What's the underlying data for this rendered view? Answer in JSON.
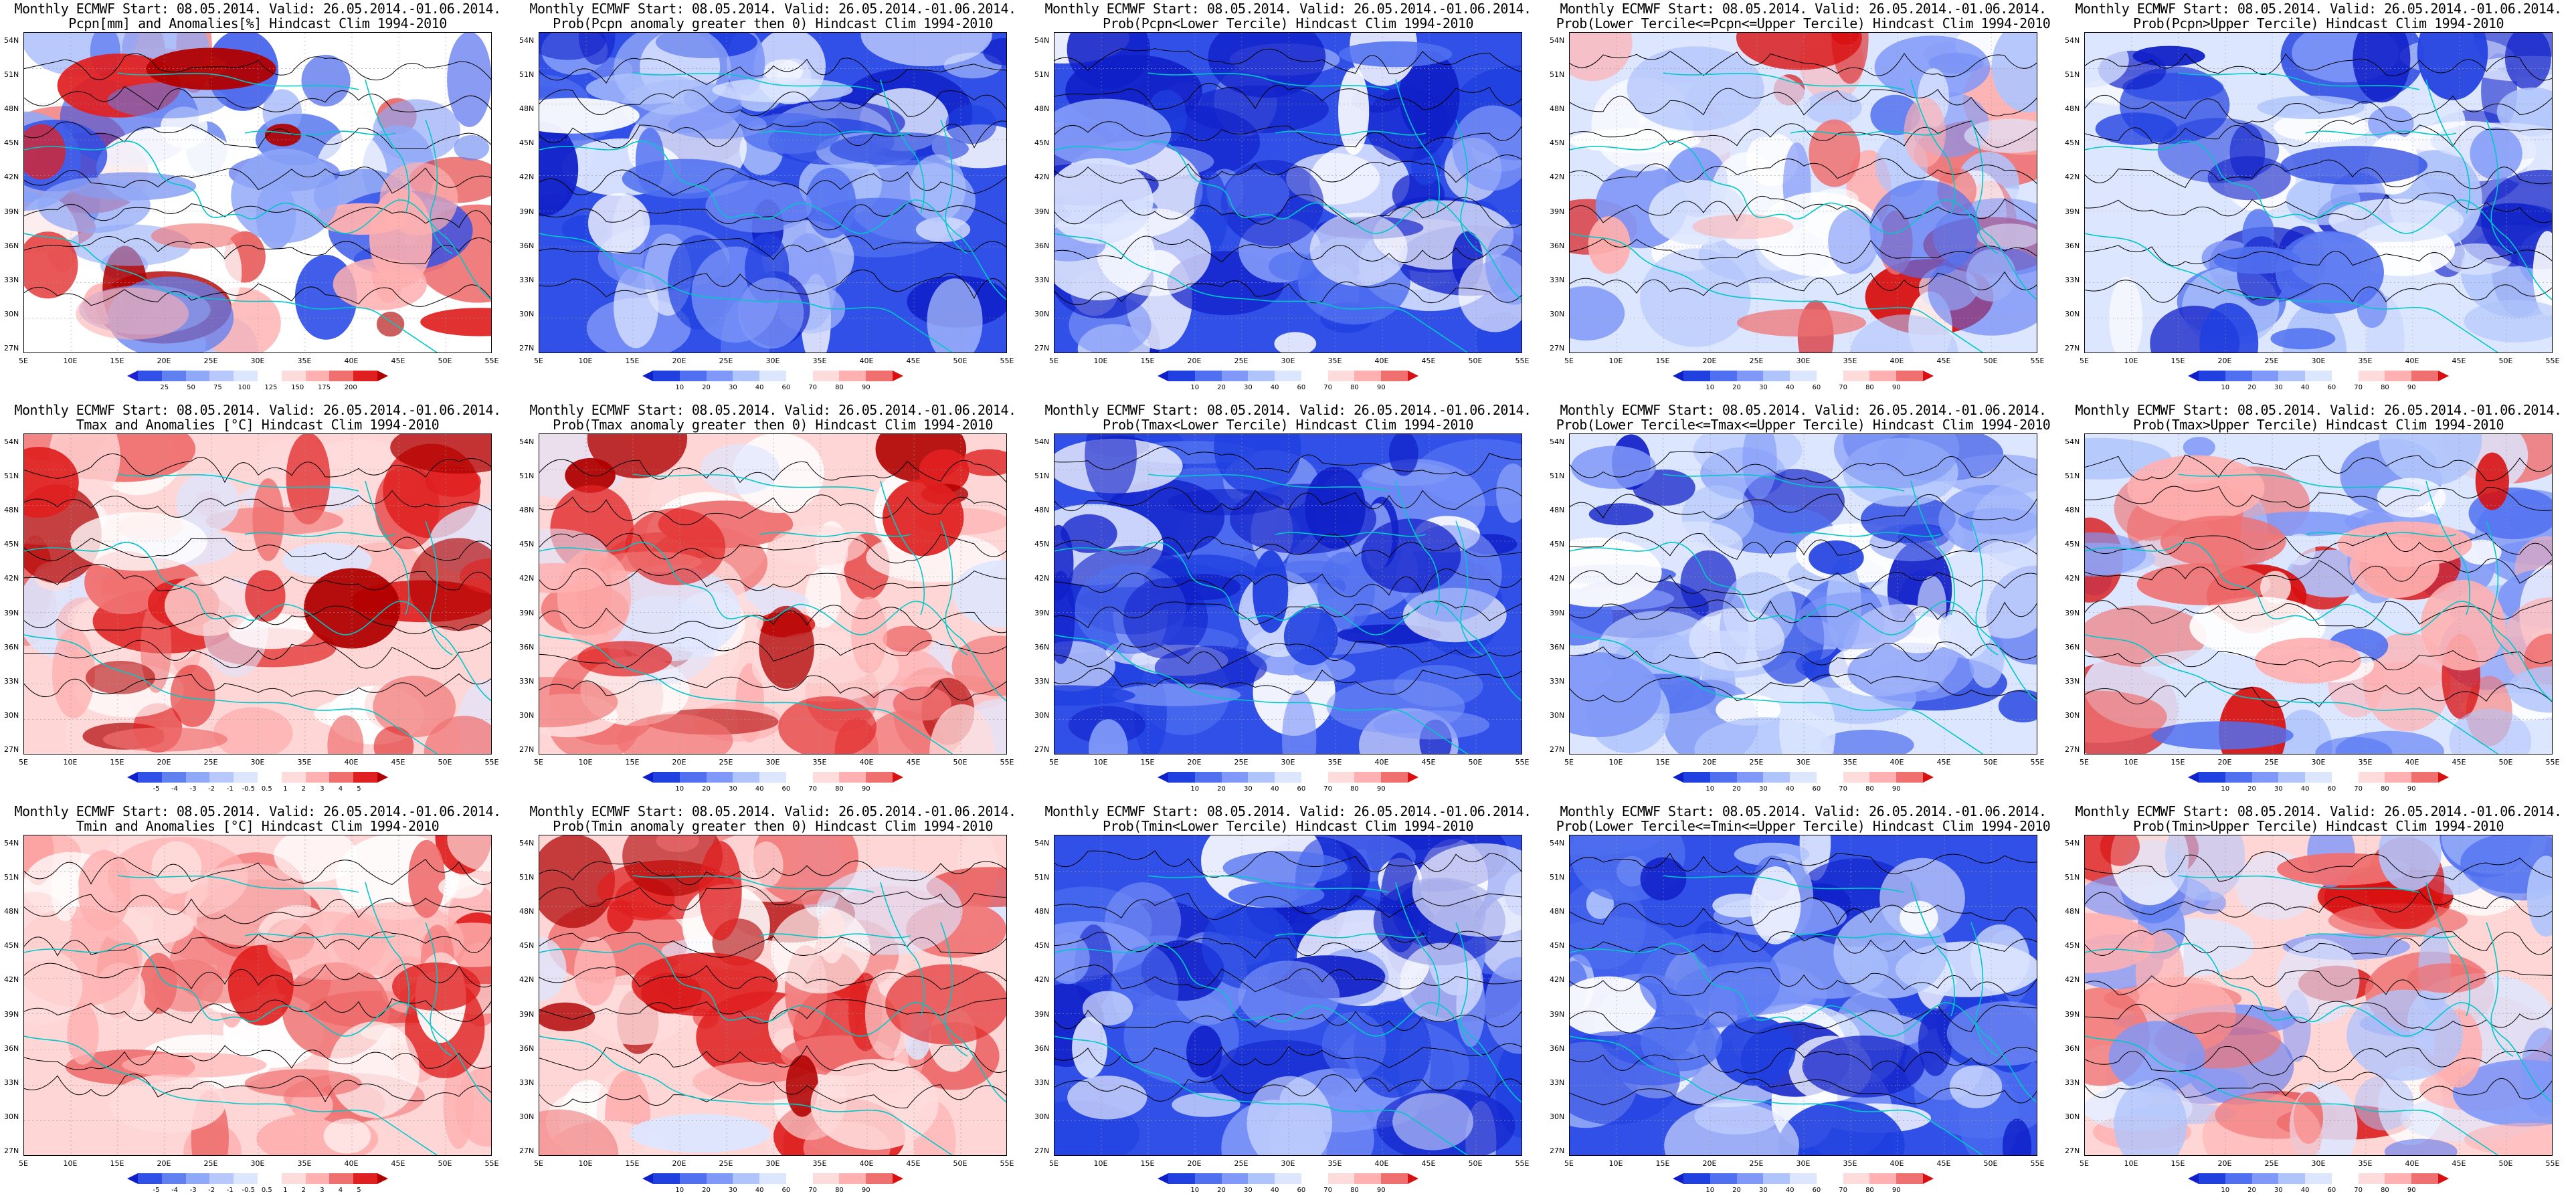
{
  "panels": [
    {
      "title1": "Monthly ECMWF Start: 08.05.2014. Valid: 26.05.2014.-01.06.2014.",
      "title2": "Pcpn[mm] and Anomalies[%] Hindcast Clim 1994-2010",
      "palette": [
        "#2020d0",
        "#3050e8",
        "#6080f0",
        "#90a8f8",
        "#b8c8fc",
        "#dde6ff",
        "#ffffff",
        "#ffdcdc",
        "#ffb0b0",
        "#f07070",
        "#e02020",
        "#b00000"
      ],
      "ticks": [
        "25",
        "50",
        "75",
        "100",
        "125",
        "150",
        "175",
        "200"
      ],
      "base": "white",
      "style": "precip"
    },
    {
      "title1": "Monthly ECMWF Start: 08.05.2014. Valid: 26.05.2014.-01.06.2014.",
      "title2": "Prob(Pcpn anomaly greater then 0) Hindcast Clim 1994-2010",
      "palette": [
        "#1020c8",
        "#2040e0",
        "#5070f0",
        "#8098f8",
        "#b0c4fc",
        "#dde6ff",
        "#ffffff",
        "#ffdcdc",
        "#ffb0b0",
        "#f07070",
        "#d81010"
      ],
      "ticks": [
        "10",
        "20",
        "30",
        "40",
        "60",
        "70",
        "80",
        "90"
      ],
      "base": "blue",
      "style": "blueheavy"
    },
    {
      "title1": "Monthly ECMWF Start: 08.05.2014. Valid: 26.05.2014.-01.06.2014.",
      "title2": "Prob(Pcpn<Lower Tercile) Hindcast Clim 1994-2010",
      "palette": [
        "#1020c8",
        "#2040e0",
        "#5070f0",
        "#8098f8",
        "#b0c4fc",
        "#dde6ff",
        "#ffffff",
        "#ffdcdc",
        "#ffb0b0",
        "#f07070",
        "#d81010"
      ],
      "ticks": [
        "10",
        "20",
        "30",
        "40",
        "60",
        "70",
        "80",
        "90"
      ],
      "base": "blue",
      "style": "bluedeep"
    },
    {
      "title1": "Monthly ECMWF Start: 08.05.2014. Valid: 26.05.2014.-01.06.2014.",
      "title2": "Prob(Lower Tercile<=Pcpn<=Upper Tercile) Hindcast Clim 1994-2010",
      "palette": [
        "#1020c8",
        "#2040e0",
        "#5070f0",
        "#8098f8",
        "#b0c4fc",
        "#dde6ff",
        "#ffffff",
        "#ffdcdc",
        "#ffb0b0",
        "#f07070",
        "#d81010"
      ],
      "ticks": [
        "10",
        "20",
        "30",
        "40",
        "60",
        "70",
        "80",
        "90"
      ],
      "base": "lightblue",
      "style": "mixed"
    },
    {
      "title1": "Monthly ECMWF Start: 08.05.2014. Valid: 26.05.2014.-01.06.2014.",
      "title2": "Prob(Pcpn>Upper Tercile) Hindcast Clim 1994-2010",
      "palette": [
        "#1020c8",
        "#2040e0",
        "#5070f0",
        "#8098f8",
        "#b0c4fc",
        "#dde6ff",
        "#ffffff",
        "#ffdcdc",
        "#ffb0b0",
        "#f07070",
        "#d81010"
      ],
      "ticks": [
        "10",
        "20",
        "30",
        "40",
        "60",
        "70",
        "80",
        "90"
      ],
      "base": "lightblue",
      "style": "blueheavy"
    },
    {
      "title1": "Monthly ECMWF Start: 08.05.2014. Valid: 26.05.2014.-01.06.2014.",
      "title2": "Tmax and Anomalies [°C] Hindcast Clim 1994-2010",
      "palette": [
        "#1020c8",
        "#3050e8",
        "#6080f0",
        "#90a8f8",
        "#b8c8fc",
        "#dde6ff",
        "#ffffff",
        "#ffdcdc",
        "#ffb0b0",
        "#f07070",
        "#e02020",
        "#b00000"
      ],
      "ticks": [
        "-5",
        "-4",
        "-3",
        "-2",
        "-1",
        "-0.5",
        "0.5",
        "1",
        "2",
        "3",
        "4",
        "5"
      ],
      "base": "pink",
      "style": "red"
    },
    {
      "title1": "Monthly ECMWF Start: 08.05.2014. Valid: 26.05.2014.-01.06.2014.",
      "title2": "Prob(Tmax anomaly greater then 0) Hindcast Clim 1994-2010",
      "palette": [
        "#1020c8",
        "#2040e0",
        "#5070f0",
        "#8098f8",
        "#b0c4fc",
        "#dde6ff",
        "#ffffff",
        "#ffdcdc",
        "#ffb0b0",
        "#f07070",
        "#d81010"
      ],
      "ticks": [
        "10",
        "20",
        "30",
        "40",
        "60",
        "70",
        "80",
        "90"
      ],
      "base": "pink",
      "style": "red"
    },
    {
      "title1": "Monthly ECMWF Start: 08.05.2014. Valid: 26.05.2014.-01.06.2014.",
      "title2": "Prob(Tmax<Lower Tercile) Hindcast Clim 1994-2010",
      "palette": [
        "#1020c8",
        "#2040e0",
        "#5070f0",
        "#8098f8",
        "#b0c4fc",
        "#dde6ff",
        "#ffffff",
        "#ffdcdc",
        "#ffb0b0",
        "#f07070",
        "#d81010"
      ],
      "ticks": [
        "10",
        "20",
        "30",
        "40",
        "60",
        "70",
        "80",
        "90"
      ],
      "base": "blue",
      "style": "bluedeep"
    },
    {
      "title1": "Monthly ECMWF Start: 08.05.2014. Valid: 26.05.2014.-01.06.2014.",
      "title2": "Prob(Lower Tercile<=Tmax<=Upper Tercile) Hindcast Clim 1994-2010",
      "palette": [
        "#1020c8",
        "#2040e0",
        "#5070f0",
        "#8098f8",
        "#b0c4fc",
        "#dde6ff",
        "#ffffff",
        "#ffdcdc",
        "#ffb0b0",
        "#f07070",
        "#d81010"
      ],
      "ticks": [
        "10",
        "20",
        "30",
        "40",
        "60",
        "70",
        "80",
        "90"
      ],
      "base": "lightblue",
      "style": "blueheavy"
    },
    {
      "title1": "Monthly ECMWF Start: 08.05.2014. Valid: 26.05.2014.-01.06.2014.",
      "title2": "Prob(Tmax>Upper Tercile) Hindcast Clim 1994-2010",
      "palette": [
        "#1020c8",
        "#2040e0",
        "#5070f0",
        "#8098f8",
        "#b0c4fc",
        "#dde6ff",
        "#ffffff",
        "#ffdcdc",
        "#ffb0b0",
        "#f07070",
        "#d81010"
      ],
      "ticks": [
        "10",
        "20",
        "30",
        "40",
        "60",
        "70",
        "80",
        "90"
      ],
      "base": "lightblue",
      "style": "mixed"
    },
    {
      "title1": "Monthly ECMWF Start: 08.05.2014. Valid: 26.05.2014.-01.06.2014.",
      "title2": "Tmin and Anomalies [°C] Hindcast Clim 1994-2010",
      "palette": [
        "#1020c8",
        "#3050e8",
        "#6080f0",
        "#90a8f8",
        "#b8c8fc",
        "#dde6ff",
        "#ffffff",
        "#ffdcdc",
        "#ffb0b0",
        "#f07070",
        "#e02020",
        "#b00000"
      ],
      "ticks": [
        "-5",
        "-4",
        "-3",
        "-2",
        "-1",
        "-0.5",
        "0.5",
        "1",
        "2",
        "3",
        "4",
        "5"
      ],
      "base": "pink",
      "style": "redlight"
    },
    {
      "title1": "Monthly ECMWF Start: 08.05.2014. Valid: 26.05.2014.-01.06.2014.",
      "title2": "Prob(Tmin anomaly greater then 0) Hindcast Clim 1994-2010",
      "palette": [
        "#1020c8",
        "#2040e0",
        "#5070f0",
        "#8098f8",
        "#b0c4fc",
        "#dde6ff",
        "#ffffff",
        "#ffdcdc",
        "#ffb0b0",
        "#f07070",
        "#d81010"
      ],
      "ticks": [
        "10",
        "20",
        "30",
        "40",
        "60",
        "70",
        "80",
        "90"
      ],
      "base": "pink",
      "style": "red"
    },
    {
      "title1": "Monthly ECMWF Start: 08.05.2014. Valid: 26.05.2014.-01.06.2014.",
      "title2": "Prob(Tmin<Lower Tercile) Hindcast Clim 1994-2010",
      "palette": [
        "#1020c8",
        "#2040e0",
        "#5070f0",
        "#8098f8",
        "#b0c4fc",
        "#dde6ff",
        "#ffffff",
        "#ffdcdc",
        "#ffb0b0",
        "#f07070",
        "#d81010"
      ],
      "ticks": [
        "10",
        "20",
        "30",
        "40",
        "60",
        "70",
        "80",
        "90"
      ],
      "base": "blue",
      "style": "bluedeep"
    },
    {
      "title1": "Monthly ECMWF Start: 08.05.2014. Valid: 26.05.2014.-01.06.2014.",
      "title2": "Prob(Lower Tercile<=Tmin<=Upper Tercile) Hindcast Clim 1994-2010",
      "palette": [
        "#1020c8",
        "#2040e0",
        "#5070f0",
        "#8098f8",
        "#b0c4fc",
        "#dde6ff",
        "#ffffff",
        "#ffdcdc",
        "#ffb0b0",
        "#f07070",
        "#d81010"
      ],
      "ticks": [
        "10",
        "20",
        "30",
        "40",
        "60",
        "70",
        "80",
        "90"
      ],
      "base": "blue",
      "style": "blueheavy"
    },
    {
      "title1": "Monthly ECMWF Start: 08.05.2014. Valid: 26.05.2014.-01.06.2014.",
      "title2": "Prob(Tmin>Upper Tercile) Hindcast Clim 1994-2010",
      "palette": [
        "#1020c8",
        "#2040e0",
        "#5070f0",
        "#8098f8",
        "#b0c4fc",
        "#dde6ff",
        "#ffffff",
        "#ffdcdc",
        "#ffb0b0",
        "#f07070",
        "#d81010"
      ],
      "ticks": [
        "10",
        "20",
        "30",
        "40",
        "60",
        "70",
        "80",
        "90"
      ],
      "base": "pink",
      "style": "mixed"
    }
  ],
  "lat_labels": [
    "54N",
    "51N",
    "48N",
    "45N",
    "42N",
    "39N",
    "36N",
    "33N",
    "30N",
    "27N"
  ],
  "lon_labels": [
    "5E",
    "10E",
    "15E",
    "20E",
    "25E",
    "30E",
    "35E",
    "40E",
    "45E",
    "50E",
    "55E"
  ],
  "colors": {
    "coast": "#00c8c8",
    "contour": "#000000",
    "grid": "#9a9a9a"
  }
}
